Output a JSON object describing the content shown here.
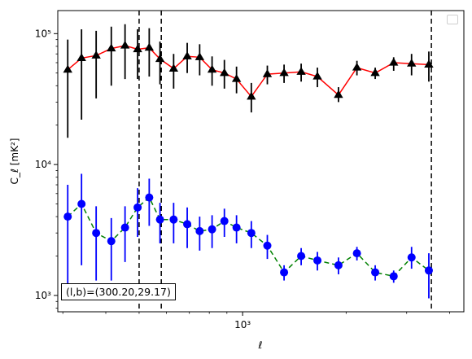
{
  "chart_data": {
    "type": "scatter",
    "xscale": "log",
    "yscale": "log",
    "xlim": [
      290,
      4400
    ],
    "ylim": [
      750,
      150000
    ],
    "xlabel": "ℓ",
    "ylabel": "C_ℓ  [mK²]",
    "y_ticks": [
      1000,
      10000,
      100000
    ],
    "y_tick_labels": [
      "10³",
      "10⁴",
      "10⁵"
    ],
    "x_ticks": [
      1000
    ],
    "x_tick_labels": [
      "10³"
    ],
    "vlines": [
      500,
      580,
      3540
    ],
    "annotation": "(l,b)=(300.20,29.17)",
    "series": [
      {
        "marker": "triangle",
        "color": "#000000",
        "line_color": "#ff0000",
        "line_style": "solid",
        "points": [
          {
            "x": 310,
            "y": 53000,
            "lo": 16000,
            "hi": 90000
          },
          {
            "x": 340,
            "y": 65000,
            "lo": 22000,
            "hi": 108000
          },
          {
            "x": 375,
            "y": 68000,
            "lo": 32000,
            "hi": 105000
          },
          {
            "x": 415,
            "y": 77000,
            "lo": 40000,
            "hi": 113000
          },
          {
            "x": 455,
            "y": 81000,
            "lo": 45000,
            "hi": 118000
          },
          {
            "x": 495,
            "y": 76000,
            "lo": 45000,
            "hi": 108000
          },
          {
            "x": 535,
            "y": 78000,
            "lo": 47000,
            "hi": 110000
          },
          {
            "x": 575,
            "y": 64000,
            "lo": 41000,
            "hi": 87000
          },
          {
            "x": 630,
            "y": 54000,
            "lo": 38000,
            "hi": 70000
          },
          {
            "x": 690,
            "y": 67000,
            "lo": 50000,
            "hi": 85000
          },
          {
            "x": 750,
            "y": 66000,
            "lo": 48000,
            "hi": 83000
          },
          {
            "x": 815,
            "y": 53000,
            "lo": 40000,
            "hi": 67000
          },
          {
            "x": 885,
            "y": 50000,
            "lo": 38000,
            "hi": 63000
          },
          {
            "x": 960,
            "y": 45000,
            "lo": 35000,
            "hi": 56000
          },
          {
            "x": 1060,
            "y": 33000,
            "lo": 25000,
            "hi": 42000
          },
          {
            "x": 1180,
            "y": 49000,
            "lo": 41000,
            "hi": 57000
          },
          {
            "x": 1320,
            "y": 50000,
            "lo": 42000,
            "hi": 58000
          },
          {
            "x": 1480,
            "y": 51000,
            "lo": 43000,
            "hi": 59000
          },
          {
            "x": 1650,
            "y": 47000,
            "lo": 39000,
            "hi": 55000
          },
          {
            "x": 1900,
            "y": 34000,
            "lo": 30000,
            "hi": 39000
          },
          {
            "x": 2150,
            "y": 55000,
            "lo": 48000,
            "hi": 62000
          },
          {
            "x": 2430,
            "y": 50000,
            "lo": 45000,
            "hi": 55000
          },
          {
            "x": 2750,
            "y": 60000,
            "lo": 52000,
            "hi": 66000
          },
          {
            "x": 3100,
            "y": 59000,
            "lo": 48000,
            "hi": 70000
          },
          {
            "x": 3480,
            "y": 58000,
            "lo": 43000,
            "hi": 73000
          }
        ]
      },
      {
        "marker": "circle",
        "color": "#0000ff",
        "line_color": "#008000",
        "line_style": "dashed",
        "points": [
          {
            "x": 310,
            "y": 4000,
            "lo": 1100,
            "hi": 7000
          },
          {
            "x": 340,
            "y": 5000,
            "lo": 1700,
            "hi": 8500
          },
          {
            "x": 375,
            "y": 3000,
            "lo": 1300,
            "hi": 4800
          },
          {
            "x": 415,
            "y": 2600,
            "lo": 1300,
            "hi": 3900
          },
          {
            "x": 455,
            "y": 3300,
            "lo": 1800,
            "hi": 4800
          },
          {
            "x": 495,
            "y": 4700,
            "lo": 2800,
            "hi": 6600
          },
          {
            "x": 535,
            "y": 5600,
            "lo": 3400,
            "hi": 7800
          },
          {
            "x": 575,
            "y": 3800,
            "lo": 2500,
            "hi": 5100
          },
          {
            "x": 630,
            "y": 3800,
            "lo": 2500,
            "hi": 5100
          },
          {
            "x": 690,
            "y": 3500,
            "lo": 2300,
            "hi": 4700
          },
          {
            "x": 750,
            "y": 3100,
            "lo": 2200,
            "hi": 4000
          },
          {
            "x": 815,
            "y": 3200,
            "lo": 2300,
            "hi": 4100
          },
          {
            "x": 885,
            "y": 3700,
            "lo": 2800,
            "hi": 4600
          },
          {
            "x": 960,
            "y": 3300,
            "lo": 2500,
            "hi": 4100
          },
          {
            "x": 1060,
            "y": 3000,
            "lo": 2300,
            "hi": 3700
          },
          {
            "x": 1180,
            "y": 2400,
            "lo": 1900,
            "hi": 2900
          },
          {
            "x": 1320,
            "y": 1500,
            "lo": 1300,
            "hi": 1700
          },
          {
            "x": 1480,
            "y": 2000,
            "lo": 1700,
            "hi": 2300
          },
          {
            "x": 1650,
            "y": 1850,
            "lo": 1550,
            "hi": 2150
          },
          {
            "x": 1900,
            "y": 1700,
            "lo": 1450,
            "hi": 1950
          },
          {
            "x": 2150,
            "y": 2100,
            "lo": 1850,
            "hi": 2350
          },
          {
            "x": 2430,
            "y": 1500,
            "lo": 1300,
            "hi": 1700
          },
          {
            "x": 2750,
            "y": 1400,
            "lo": 1250,
            "hi": 1550
          },
          {
            "x": 3100,
            "y": 1950,
            "lo": 1600,
            "hi": 2350
          },
          {
            "x": 3480,
            "y": 1550,
            "lo": 950,
            "hi": 2100
          }
        ]
      }
    ]
  }
}
